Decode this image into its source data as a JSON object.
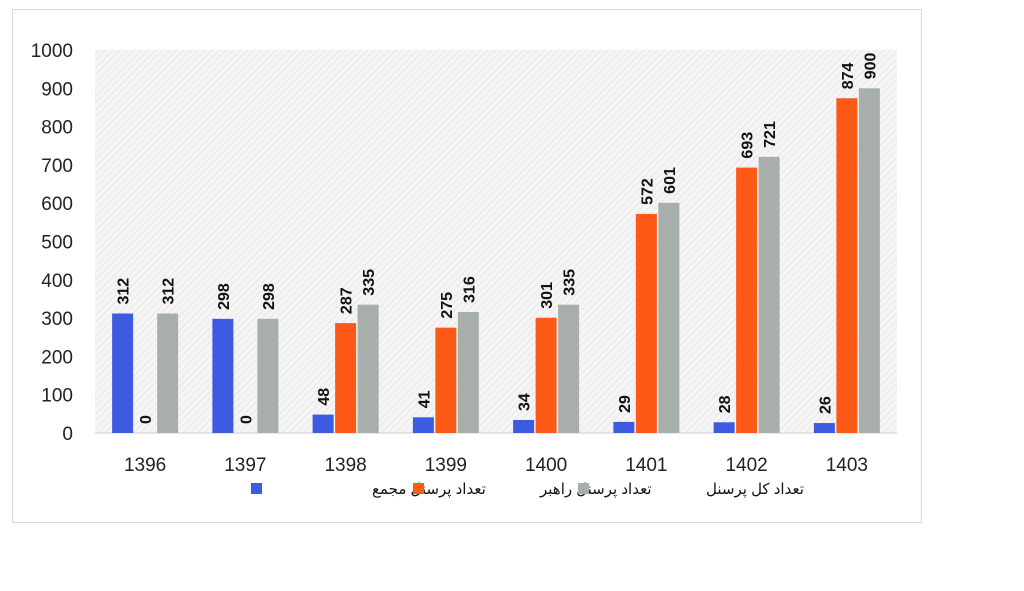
{
  "chart_data": {
    "type": "bar",
    "title": "",
    "xlabel": "",
    "ylabel": "",
    "ylim": [
      0,
      1000
    ],
    "yticks": [
      0,
      100,
      200,
      300,
      400,
      500,
      600,
      700,
      800,
      900,
      1000
    ],
    "categories": [
      "1396",
      "1397",
      "1398",
      "1399",
      "1400",
      "1401",
      "1402",
      "1403"
    ],
    "series": [
      {
        "name": "تعداد پرسنل مجمع",
        "color": "#3d5be0",
        "values": [
          312,
          298,
          48,
          41,
          34,
          29,
          28,
          26
        ]
      },
      {
        "name": "تعداد پرسنل راهبر",
        "color": "#fc5a16",
        "values": [
          0,
          0,
          287,
          275,
          301,
          572,
          693,
          874
        ]
      },
      {
        "name": "تعداد کل پرسنل",
        "color": "#a8aeaa",
        "values": [
          312,
          298,
          335,
          316,
          335,
          601,
          721,
          900
        ]
      }
    ],
    "grid": false,
    "legend_position": "bottom",
    "plot_background": "hatched-gray"
  }
}
